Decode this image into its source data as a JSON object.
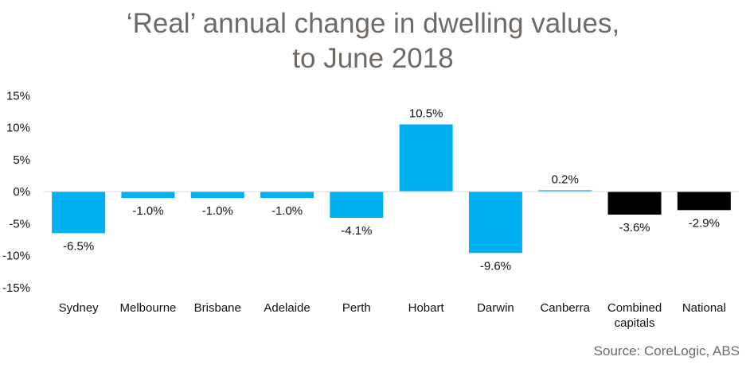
{
  "chart_data": {
    "type": "bar",
    "title_lines": [
      "‘Real’ annual change in dwelling values,",
      "to June 2018"
    ],
    "source": "Source: CoreLogic, ABS",
    "categories": [
      "Sydney",
      "Melbourne",
      "Brisbane",
      "Adelaide",
      "Perth",
      "Hobart",
      "Darwin",
      "Canberra",
      "Combined capitals",
      "National"
    ],
    "category_lines": [
      [
        "Sydney"
      ],
      [
        "Melbourne"
      ],
      [
        "Brisbane"
      ],
      [
        "Adelaide"
      ],
      [
        "Perth"
      ],
      [
        "Hobart"
      ],
      [
        "Darwin"
      ],
      [
        "Canberra"
      ],
      [
        "Combined",
        "capitals"
      ],
      [
        "National"
      ]
    ],
    "values": [
      -6.5,
      -1.0,
      -1.0,
      -1.0,
      -4.1,
      10.5,
      -9.6,
      0.2,
      -3.6,
      -2.9
    ],
    "data_labels": [
      "-6.5%",
      "-1.0%",
      "-1.0%",
      "-1.0%",
      "-4.1%",
      "10.5%",
      "-9.6%",
      "0.2%",
      "-3.6%",
      "-2.9%"
    ],
    "colors": [
      "#00b0f0",
      "#00b0f0",
      "#00b0f0",
      "#00b0f0",
      "#00b0f0",
      "#00b0f0",
      "#00b0f0",
      "#00b0f0",
      "#000000",
      "#000000"
    ],
    "ylim": [
      -15,
      15
    ],
    "yticks": [
      15,
      10,
      5,
      0,
      -5,
      -10,
      -15
    ],
    "ytick_labels": [
      "15%",
      "10%",
      "5%",
      "0%",
      "-5%",
      "-10%",
      "-15%"
    ],
    "grid": false,
    "legend": "none"
  }
}
